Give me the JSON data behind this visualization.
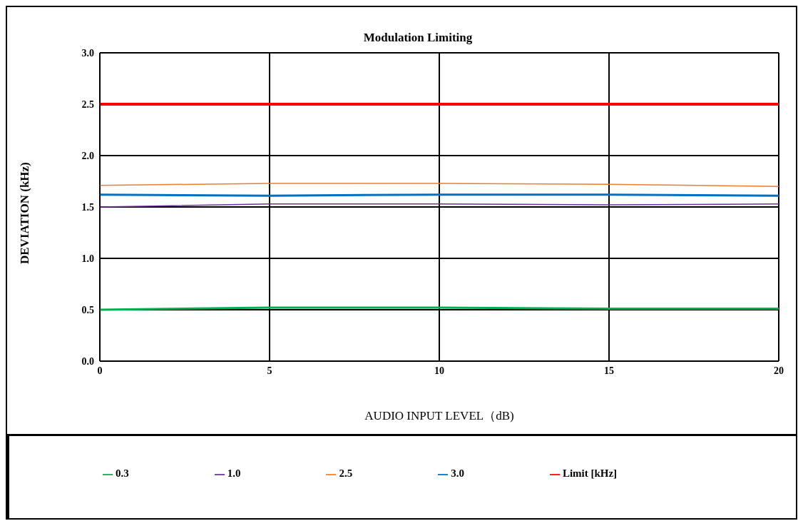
{
  "chart_data": {
    "type": "line",
    "title": "Modulation Limiting",
    "xlabel": "AUDIO INPUT LEVEL（dB)",
    "ylabel": "DEVIATION (kHz)",
    "x": [
      0,
      5,
      10,
      15,
      20
    ],
    "series": [
      {
        "name": "0.3",
        "color": "#00b050",
        "values": [
          0.5,
          0.52,
          0.52,
          0.51,
          0.51
        ]
      },
      {
        "name": "1.0",
        "color": "#7030a0",
        "values": [
          1.5,
          1.53,
          1.53,
          1.52,
          1.53
        ]
      },
      {
        "name": "2.5",
        "color": "#ed7d31",
        "values": [
          1.71,
          1.73,
          1.73,
          1.72,
          1.7
        ]
      },
      {
        "name": "3.0",
        "color": "#0070c0",
        "values": [
          1.62,
          1.61,
          1.62,
          1.62,
          1.61
        ]
      },
      {
        "name": "Limit [kHz]",
        "color": "#ff0000",
        "values": [
          2.5,
          2.5,
          2.5,
          2.5,
          2.5
        ]
      }
    ],
    "xlim": [
      0,
      20
    ],
    "xticks": [
      0,
      5,
      10,
      15,
      20
    ],
    "ylim": [
      0,
      3
    ],
    "yticks": [
      {
        "value": 0,
        "label": "0.0"
      },
      0.5,
      {
        "value": 1,
        "label": "1.0"
      },
      1.5,
      {
        "value": 2,
        "label": "2.0"
      },
      2.5,
      {
        "value": 3,
        "label": "3.0"
      }
    ],
    "grid": true,
    "legend": "bottom",
    "marker": "none",
    "line_style": "solid"
  }
}
